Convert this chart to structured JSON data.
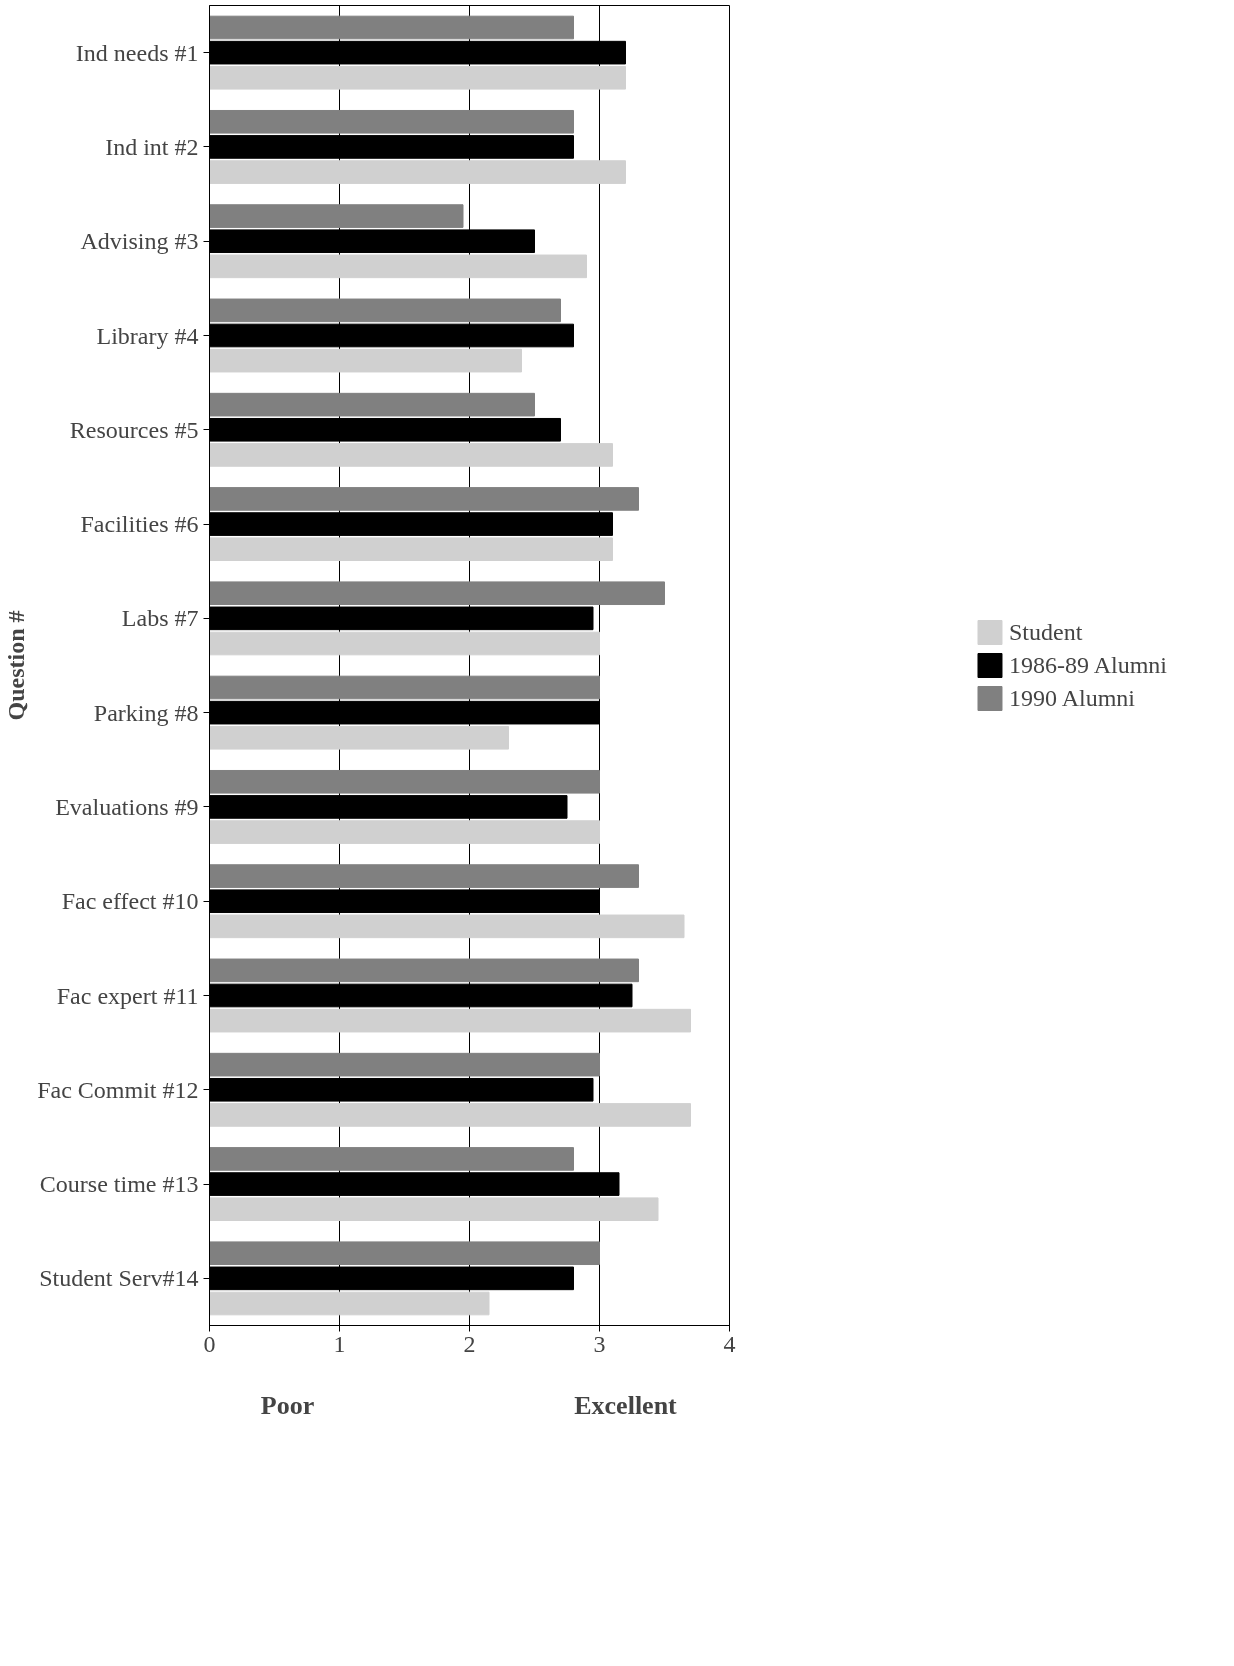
{
  "chart_data": {
    "type": "bar",
    "orientation": "horizontal",
    "ylabel": "Question #",
    "categories": [
      "Ind needs #1",
      "Ind int #2",
      "Advising #3",
      "Library #4",
      "Resources #5",
      "Facilities #6",
      "Labs #7",
      "Parking #8",
      "Evaluations #9",
      "Fac effect #10",
      "Fac expert #11",
      "Fac Commit #12",
      "Course time #13",
      "Student Serv#14"
    ],
    "series": [
      {
        "name": "Student",
        "color": "#d0d0d0",
        "values": [
          3.2,
          3.2,
          2.9,
          2.4,
          3.1,
          3.1,
          3.0,
          2.3,
          3.0,
          3.65,
          3.7,
          3.7,
          3.45,
          2.15
        ]
      },
      {
        "name": "1986-89 Alumni",
        "color": "#000000",
        "values": [
          3.2,
          2.8,
          2.5,
          2.8,
          2.7,
          3.1,
          2.95,
          3.0,
          2.75,
          3.0,
          3.25,
          2.95,
          3.15,
          2.8
        ]
      },
      {
        "name": "1990 Alumni",
        "color": "#808080",
        "values": [
          2.8,
          2.8,
          1.95,
          2.7,
          2.5,
          3.3,
          3.5,
          3.0,
          3.0,
          3.3,
          3.3,
          3.0,
          2.8,
          3.0
        ]
      }
    ],
    "xlim": [
      0,
      4
    ],
    "xticks": [
      0,
      1,
      2,
      3,
      4
    ],
    "grid": "x",
    "legend": "right",
    "annotations": [
      "Poor",
      "Excellent"
    ]
  }
}
